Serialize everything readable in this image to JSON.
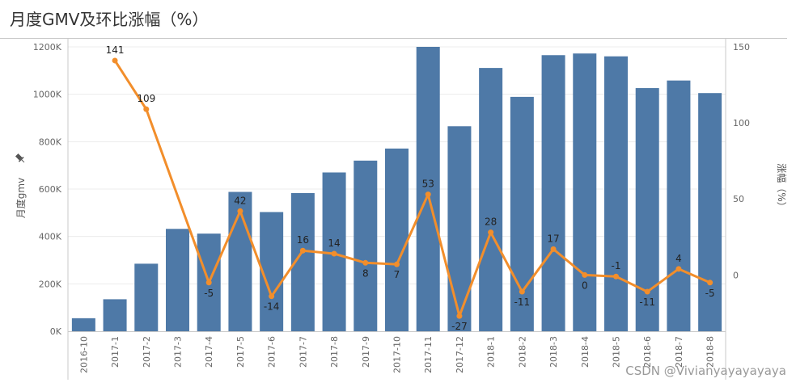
{
  "title": "月度GMV及环比涨幅（%）",
  "watermark": "CSDN @Vivianyayayayaya",
  "chart_data": {
    "type": "bar+line",
    "title": "月度GMV及环比涨幅（%）",
    "categories": [
      "2016-10",
      "2017-1",
      "2017-2",
      "2017-3",
      "2017-4",
      "2017-5",
      "2017-6",
      "2017-7",
      "2017-8",
      "2017-9",
      "2017-10",
      "2017-11",
      "2017-12",
      "2018-1",
      "2018-2",
      "2018-3",
      "2018-4",
      "2018-5",
      "2018-6",
      "2018-7",
      "2018-8"
    ],
    "left_axis": {
      "label": "月度gmv",
      "range": [
        0,
        1200000
      ],
      "ticks": [
        0,
        200000,
        400000,
        600000,
        800000,
        1000000,
        1200000
      ],
      "tick_labels": [
        "0K",
        "200K",
        "400K",
        "600K",
        "800K",
        "1000K",
        "1200K"
      ]
    },
    "right_axis": {
      "label": "涨幅（%）",
      "range": [
        -37,
        150
      ],
      "ticks": [
        0,
        50,
        100,
        150
      ],
      "tick_labels": [
        "0",
        "50",
        "100",
        "150"
      ]
    },
    "series": [
      {
        "type": "bar",
        "axis": "left",
        "color": "#4e79a7",
        "values": [
          55000,
          135000,
          285000,
          432000,
          412000,
          588000,
          503000,
          583000,
          670000,
          720000,
          771000,
          1200000,
          865000,
          1111000,
          989000,
          1165000,
          1172000,
          1160000,
          1026000,
          1058000,
          1005000
        ]
      },
      {
        "type": "line",
        "axis": "right",
        "color": "#f28e2b",
        "values": [
          null,
          141,
          109,
          null,
          -5,
          42,
          -14,
          16,
          14,
          8,
          7,
          53,
          -27,
          28,
          -11,
          17,
          0,
          -1,
          -11,
          4,
          -5
        ],
        "labels": [
          null,
          "141",
          "109",
          null,
          "-5",
          "42",
          "-14",
          "16",
          "14",
          "8",
          "7",
          "53",
          "-27",
          "28",
          "-11",
          "17",
          "0",
          "-1",
          "-11",
          "4",
          "-5"
        ],
        "label_position": [
          "",
          "above",
          "above",
          "",
          "below",
          "above",
          "below",
          "above",
          "above",
          "below",
          "below",
          "above",
          "below",
          "above",
          "below",
          "above",
          "below",
          "above",
          "below",
          "above",
          "below"
        ]
      }
    ],
    "grid": "horizontal",
    "pin_icon": "pin-icon"
  }
}
